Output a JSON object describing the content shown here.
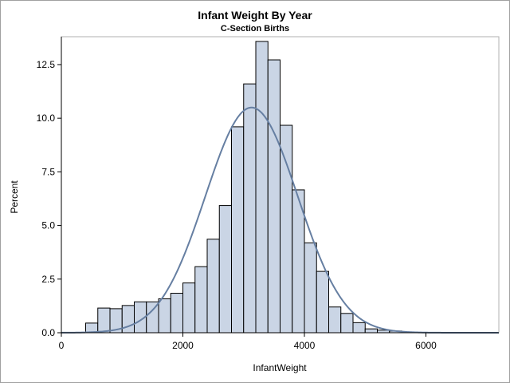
{
  "chart_data": {
    "type": "bar",
    "title": "Infant Weight By Year",
    "subtitle": "C-Section Births",
    "xlabel": "InfantWeight",
    "ylabel": "Percent",
    "xlim": [
      0,
      7200
    ],
    "ylim": [
      0,
      13.8
    ],
    "xticks": [
      0,
      2000,
      4000,
      6000
    ],
    "xtick_labels": [
      "0",
      "2000",
      "4000",
      "6000"
    ],
    "yticks": [
      0,
      2.5,
      5,
      7.5,
      10,
      12.5
    ],
    "ytick_labels": [
      "0.0",
      "2.5",
      "5.0",
      "7.5",
      "10.0",
      "12.5"
    ],
    "grid": false,
    "legend": "none",
    "bin_width": 200,
    "bin_start": 400,
    "values": [
      0.45,
      1.15,
      1.12,
      1.27,
      1.44,
      1.44,
      1.58,
      1.84,
      2.32,
      3.08,
      4.36,
      5.93,
      9.6,
      11.6,
      13.58,
      12.72,
      9.67,
      6.66,
      4.19,
      2.86,
      1.2,
      0.9,
      0.47,
      0.18,
      0.12,
      0.08
    ],
    "normal_curve": {
      "mean": 3130,
      "std": 760
    },
    "colors": {
      "bar_fill": "#cad5e5",
      "bar_stroke": "#000000",
      "curve": "#667fa2"
    }
  }
}
